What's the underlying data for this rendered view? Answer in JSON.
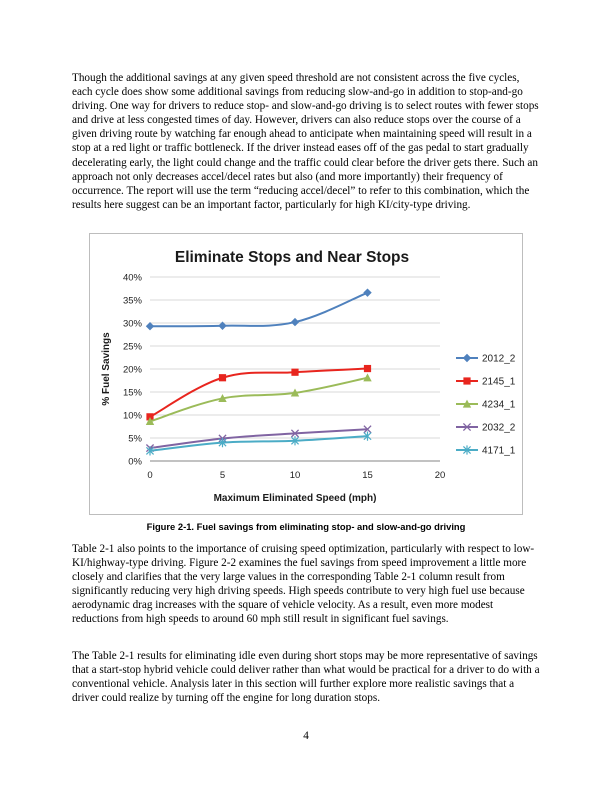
{
  "paragraphs": {
    "p1": "Though the additional savings at any given speed threshold are not consistent across the five cycles, each cycle does show some additional savings from reducing slow-and-go in addition to stop-and-go driving. One way for drivers to reduce stop- and slow-and-go driving is to select routes with fewer stops and drive at less congested times of day. However, drivers can also reduce stops over the course of a given driving route by watching far enough ahead to anticipate when maintaining speed will result in a stop at a red light or traffic bottleneck. If the driver instead eases off of the gas pedal to start gradually decelerating early, the light could change and the traffic could clear before the driver gets there. Such an approach not only decreases accel/decel rates but also (and more importantly) their frequency of occurrence. The report will use the term “reducing accel/decel” to refer to this combination, which the results here suggest can be an important factor, particularly for high KI/city-type driving.",
    "p2": "Table 2-1 also points to the importance of cruising speed optimization, particularly with respect to low-KI/highway-type driving. Figure 2-2 examines the fuel savings from speed improvement a little more closely and clarifies that the very large values in the corresponding Table 2-1 column result from significantly reducing very high driving speeds. High speeds contribute to very high fuel use because aerodynamic drag increases with the square of vehicle velocity. As a result, even more modest reductions from high speeds to around 60 mph still result in significant fuel savings.",
    "p3": "The Table 2-1 results for eliminating idle even during short stops may be more representative of savings that a start-stop hybrid vehicle could deliver rather than what would be practical for a driver to do with a conventional vehicle. Analysis later in this section will further explore more realistic savings that a driver could realize by turning off the engine for long duration stops."
  },
  "figure": {
    "caption": "Figure 2-1. Fuel savings from eliminating stop- and slow-and-go driving"
  },
  "page_number": "4",
  "chart_data": {
    "type": "line",
    "title": "Eliminate Stops and Near Stops",
    "xlabel": "Maximum Eliminated Speed (mph)",
    "ylabel": "% Fuel Savings",
    "xlim": [
      0,
      20
    ],
    "ylim": [
      0,
      40
    ],
    "x_ticks": [
      "0",
      "5",
      "10",
      "15",
      "20"
    ],
    "y_ticks": [
      "0%",
      "5%",
      "10%",
      "15%",
      "20%",
      "25%",
      "30%",
      "35%",
      "40%"
    ],
    "grid": "horizontal",
    "legend_position": "right",
    "x": [
      0,
      5,
      10,
      15
    ],
    "series": [
      {
        "name": "2012_2",
        "values": [
          29.3,
          29.4,
          30.2,
          36.6
        ],
        "color": "#4f81bd",
        "marker": "diamond"
      },
      {
        "name": "2145_1",
        "values": [
          9.6,
          18.1,
          19.3,
          20.1
        ],
        "color": "#e8251e",
        "marker": "square"
      },
      {
        "name": "4234_1",
        "values": [
          8.6,
          13.6,
          14.8,
          18.1
        ],
        "color": "#9bbb59",
        "marker": "triangle"
      },
      {
        "name": "2032_2",
        "values": [
          2.8,
          4.9,
          6.0,
          6.9
        ],
        "color": "#8064a2",
        "marker": "x"
      },
      {
        "name": "4171_1",
        "values": [
          2.2,
          4.0,
          4.4,
          5.4
        ],
        "color": "#4bacc6",
        "marker": "star"
      }
    ]
  }
}
